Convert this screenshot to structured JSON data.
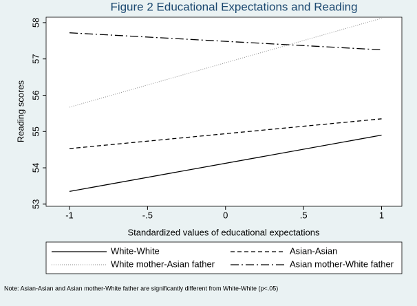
{
  "chart_data": {
    "type": "line",
    "title": "Figure 2 Educational Expectations and Reading",
    "x_label": "Standardized values of educational expectations",
    "y_label": "Reading scores",
    "note": "Note: Asian-Asian and Asian mother-White father are significantly different from White-White (p<.05)",
    "x": [
      -1,
      1
    ],
    "series": [
      {
        "name": "White-White",
        "color": "#000000",
        "dash": "solid",
        "values": [
          53.35,
          54.9
        ]
      },
      {
        "name": "Asian-Asian",
        "color": "#000000",
        "dash": "dash",
        "values": [
          54.53,
          55.35
        ]
      },
      {
        "name": "White mother-Asian father",
        "color": "#8a8a8a",
        "dash": "dot",
        "values": [
          55.67,
          58.12
        ]
      },
      {
        "name": "Asian mother-White father",
        "color": "#000000",
        "dash": "dashdot",
        "values": [
          57.72,
          57.25
        ]
      }
    ],
    "xlim": [
      -1.15,
      1.13
    ],
    "ylim": [
      52.94,
      58.15
    ],
    "xticks": [
      -1,
      {
        "value": -0.5,
        "label": "-.5"
      },
      0,
      {
        "value": 0.5,
        "label": ".5"
      },
      1
    ],
    "yticks": [
      53,
      54,
      55,
      56,
      57,
      58
    ],
    "grid": false,
    "legend": "bottom"
  }
}
